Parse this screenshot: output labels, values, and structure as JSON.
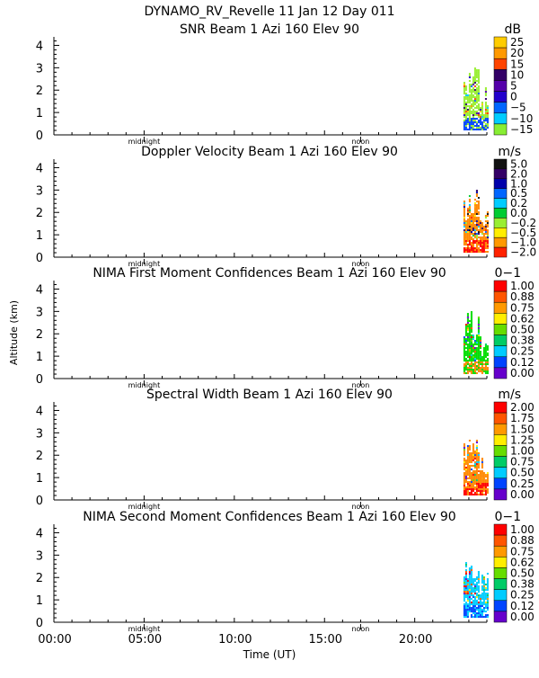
{
  "figure_title": "DYNAMO_RV_Revelle  11 Jan 12 Day 011",
  "y_axis_label": "Altitude (km)",
  "x_axis_label": "Time (UT)",
  "x_tick_labels": [
    "00:00",
    "05:00",
    "10:00",
    "15:00",
    "20:00"
  ],
  "y_tick_labels": [
    "0",
    "1",
    "2",
    "3",
    "4"
  ],
  "inner_markers": [
    "midnight",
    "noon"
  ],
  "colors": {
    "purple": "#6600cc",
    "darkblue": "#2200bb",
    "blue": "#0044ff",
    "lightblue": "#0099ff",
    "cyan": "#00ccff",
    "teal": "#00d0a0",
    "green": "#00dd00",
    "lime": "#99ee33",
    "yellow": "#ffee00",
    "gold": "#ffcc00",
    "orange": "#ff8800",
    "red": "#ff0000",
    "black": "#000000",
    "darkpurple": "#330066",
    "navy": "#0000aa"
  },
  "chart_data": [
    {
      "type": "heatmap",
      "title": "SNR Beam 1 Azi 160 Elev 90",
      "unit": "dB",
      "xlim": [
        0,
        24
      ],
      "ylim": [
        0,
        4.3
      ],
      "colorbar": {
        "labels": [
          "25",
          "20",
          "15",
          "10",
          "5",
          "0",
          "−5",
          "−10",
          "−15"
        ],
        "colors": [
          "#ffcc00",
          "#ff9900",
          "#ff4400",
          "#330066",
          "#5500aa",
          "#2200cc",
          "#0066ff",
          "#00ccff",
          "#88ee33"
        ]
      },
      "data_region": {
        "time_start": 22.7,
        "time_end": 24.0,
        "altitude_top": 3.0,
        "dominant_color": "lime",
        "low_altitude_color": "blue"
      }
    },
    {
      "type": "heatmap",
      "title": "Doppler Velocity Beam 1 Azi 160 Elev 90",
      "unit": "m/s",
      "xlim": [
        0,
        24
      ],
      "ylim": [
        0,
        4.3
      ],
      "colorbar": {
        "labels": [
          "5.0",
          "2.0",
          "1.0",
          "0.5",
          "0.2",
          "0.0",
          "−0.2",
          "−0.5",
          "−1.0",
          "−2.0"
        ],
        "colors": [
          "#111111",
          "#330066",
          "#0000aa",
          "#0066ff",
          "#00ccff",
          "#00cc33",
          "#99ee33",
          "#ffee00",
          "#ff9900",
          "#ff2200"
        ]
      },
      "data_region": {
        "time_start": 22.7,
        "time_end": 24.0,
        "altitude_top": 3.0,
        "dominant_color": "orange",
        "low_altitude_color": "red"
      }
    },
    {
      "type": "heatmap",
      "title": "NIMA First Moment Confidences Beam 1 Azi 160 Elev 90",
      "unit": "0−1",
      "xlim": [
        0,
        24
      ],
      "ylim": [
        0,
        4.3
      ],
      "colorbar": {
        "labels": [
          "1.00",
          "0.88",
          "0.75",
          "0.62",
          "0.50",
          "0.38",
          "0.25",
          "0.12",
          "0.00"
        ],
        "colors": [
          "#ff0000",
          "#ff5500",
          "#ff9900",
          "#ffee00",
          "#66dd00",
          "#00cc66",
          "#00ccff",
          "#0044ff",
          "#6600cc"
        ]
      },
      "data_region": {
        "time_start": 22.7,
        "time_end": 24.0,
        "altitude_top": 3.0,
        "dominant_color": "green",
        "low_altitude_color": "orange"
      }
    },
    {
      "type": "heatmap",
      "title": "Spectral Width Beam 1 Azi 160 Elev 90",
      "unit": "m/s",
      "xlim": [
        0,
        24
      ],
      "ylim": [
        0,
        4.3
      ],
      "colorbar": {
        "labels": [
          "2.00",
          "1.75",
          "1.50",
          "1.25",
          "1.00",
          "0.75",
          "0.50",
          "0.25",
          "0.00"
        ],
        "colors": [
          "#ff0000",
          "#ff5500",
          "#ff9900",
          "#ffee00",
          "#66dd00",
          "#00cc66",
          "#00ccff",
          "#0044ff",
          "#6600cc"
        ]
      },
      "data_region": {
        "time_start": 22.7,
        "time_end": 24.0,
        "altitude_top": 3.0,
        "dominant_color": "orange",
        "low_altitude_color": "red"
      }
    },
    {
      "type": "heatmap",
      "title": "NIMA Second Moment Confidences Beam 1 Azi 160 Elev 90",
      "unit": "0−1",
      "xlim": [
        0,
        24
      ],
      "ylim": [
        0,
        4.3
      ],
      "colorbar": {
        "labels": [
          "1.00",
          "0.88",
          "0.75",
          "0.62",
          "0.50",
          "0.38",
          "0.25",
          "0.12",
          "0.00"
        ],
        "colors": [
          "#ff0000",
          "#ff5500",
          "#ff9900",
          "#ffee00",
          "#66dd00",
          "#00cc66",
          "#00ccff",
          "#0044ff",
          "#6600cc"
        ]
      },
      "data_region": {
        "time_start": 22.7,
        "time_end": 24.0,
        "altitude_top": 3.0,
        "dominant_color": "cyan",
        "low_altitude_color": "blue"
      }
    }
  ]
}
